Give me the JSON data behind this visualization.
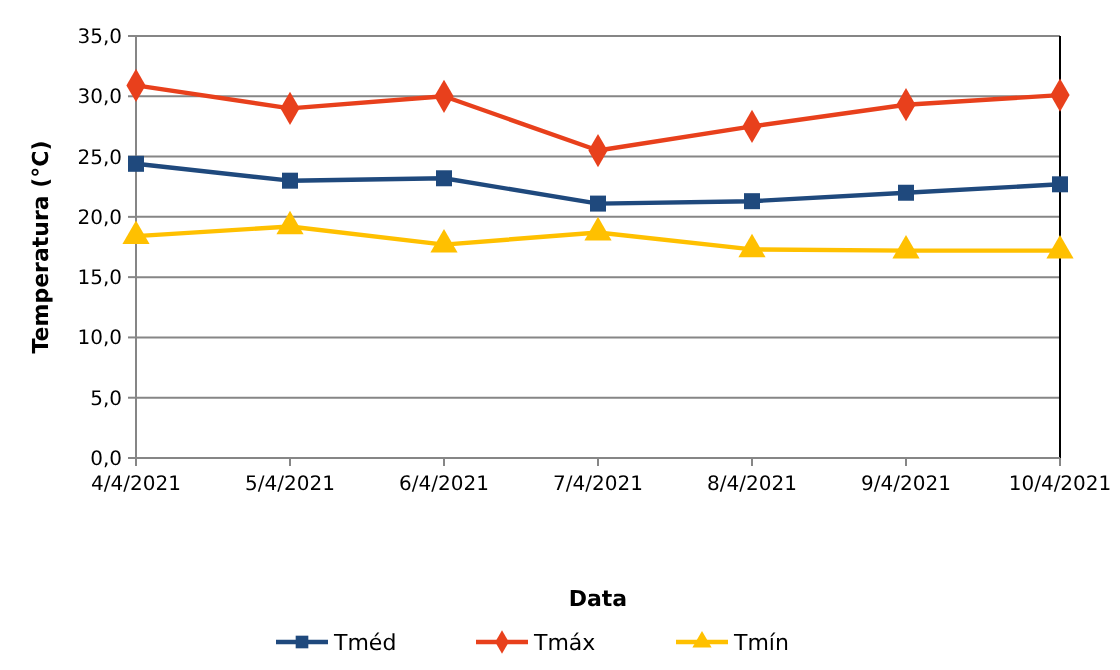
{
  "chart_data": {
    "type": "line",
    "xlabel": "Data",
    "ylabel": "Temperatura (°C)",
    "categories": [
      "4/4/2021",
      "5/4/2021",
      "6/4/2021",
      "7/4/2021",
      "8/4/2021",
      "9/4/2021",
      "10/4/2021"
    ],
    "series": [
      {
        "name": "Tméd",
        "color": "#1f497d",
        "marker": "square",
        "values": [
          24.4,
          23.0,
          23.2,
          21.1,
          21.3,
          22.0,
          22.7
        ]
      },
      {
        "name": "Tmáx",
        "color": "#e8401c",
        "marker": "diamond",
        "values": [
          30.9,
          29.0,
          30.0,
          25.5,
          27.5,
          29.3,
          30.1
        ]
      },
      {
        "name": "Tmín",
        "color": "#ffc000",
        "marker": "triangle",
        "values": [
          18.4,
          19.2,
          17.7,
          18.7,
          17.3,
          17.2,
          17.2
        ]
      }
    ],
    "ylim": [
      0,
      35
    ],
    "yticks": [
      {
        "value": 0,
        "label": "0,0"
      },
      {
        "value": 5,
        "label": "5,0"
      },
      {
        "value": 10,
        "label": "10,0"
      },
      {
        "value": 15,
        "label": "15,0"
      },
      {
        "value": 20,
        "label": "20,0"
      },
      {
        "value": 25,
        "label": "25,0"
      },
      {
        "value": 30,
        "label": "30,0"
      },
      {
        "value": 35,
        "label": "35,0"
      }
    ],
    "grid": "y",
    "legend": "bottom",
    "line_style": "solid"
  }
}
